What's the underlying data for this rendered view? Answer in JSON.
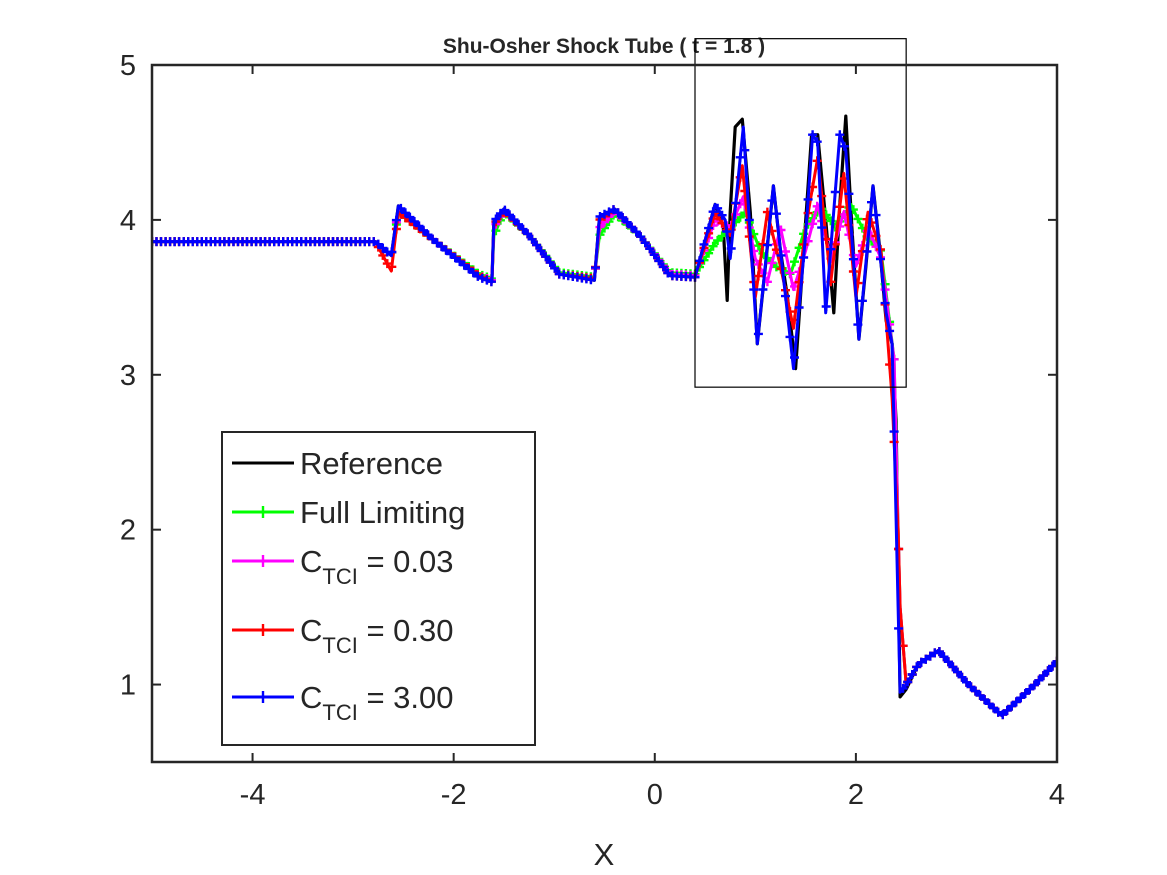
{
  "chart_data": {
    "type": "line",
    "title": "Shu-Osher Shock Tube ( t = 1.8 )",
    "xlabel": "X",
    "ylabel": "",
    "xlim": [
      -5,
      4
    ],
    "ylim": [
      0.5,
      5
    ],
    "xticks": [
      -4,
      -2,
      0,
      2,
      4
    ],
    "yticks": [
      1,
      2,
      3,
      4,
      5
    ],
    "grid": false,
    "legend_position": "bottom-left",
    "inset_box": {
      "x": [
        0.4,
        2.5
      ],
      "y": [
        2.92,
        5.17
      ]
    },
    "series": [
      {
        "name": "Reference",
        "legend_main": "Reference",
        "legend_sub": "",
        "legend_tail": "",
        "color": "#000000",
        "marker": "none",
        "x": [
          -5,
          -2.78,
          -2.62,
          -2.55,
          -2.2,
          -1.75,
          -1.62,
          -1.6,
          -1.5,
          -1.25,
          -0.95,
          -0.6,
          -0.55,
          -0.4,
          -0.15,
          0.15,
          0.4,
          0.6,
          0.68,
          0.72,
          0.75,
          0.8,
          0.87,
          0.95,
          1.02,
          1.1,
          1.18,
          1.25,
          1.32,
          1.4,
          1.48,
          1.56,
          1.62,
          1.7,
          1.78,
          1.84,
          1.9,
          1.96,
          2.03,
          2.1,
          2.17,
          2.24,
          2.3,
          2.36,
          2.4,
          2.42,
          2.44,
          2.5,
          2.62,
          2.82,
          3.12,
          3.45,
          3.78,
          4.0
        ],
        "y": [
          3.86,
          3.86,
          3.77,
          4.09,
          3.87,
          3.63,
          3.6,
          3.99,
          4.07,
          3.9,
          3.65,
          3.61,
          4.02,
          4.07,
          3.9,
          3.64,
          3.63,
          4.1,
          3.96,
          3.48,
          4.05,
          4.6,
          4.65,
          4.05,
          3.2,
          3.7,
          4.22,
          3.8,
          3.5,
          3.04,
          3.8,
          4.55,
          4.55,
          4.0,
          3.4,
          4.1,
          4.67,
          3.95,
          3.23,
          3.7,
          4.22,
          3.8,
          3.35,
          3.2,
          2.7,
          1.8,
          0.92,
          0.97,
          1.13,
          1.22,
          1.0,
          0.8,
          1.0,
          1.15
        ]
      },
      {
        "name": "Full Limiting",
        "legend_main": "Full Limiting",
        "legend_sub": "",
        "legend_tail": "",
        "color": "#00ff00",
        "marker": "+",
        "x": [
          -5,
          -2.78,
          -2.62,
          -2.55,
          -2.2,
          -1.75,
          -1.62,
          -1.6,
          -1.5,
          -1.25,
          -0.95,
          -0.6,
          -0.55,
          -0.4,
          -0.15,
          0.15,
          0.4,
          0.6,
          0.75,
          0.9,
          1.05,
          1.2,
          1.35,
          1.5,
          1.65,
          1.8,
          1.95,
          2.1,
          2.25,
          2.38,
          2.42,
          2.44,
          2.5,
          2.62,
          2.82,
          3.12,
          3.45,
          3.78,
          4.0
        ],
        "y": [
          3.86,
          3.86,
          3.77,
          4.05,
          3.87,
          3.65,
          3.62,
          3.9,
          4.05,
          3.9,
          3.66,
          3.63,
          3.9,
          4.04,
          3.9,
          3.66,
          3.65,
          3.85,
          3.95,
          4.05,
          3.8,
          3.7,
          3.65,
          3.95,
          4.08,
          3.95,
          4.1,
          3.9,
          3.8,
          3.1,
          2.0,
          1.5,
          1.0,
          1.13,
          1.22,
          1.0,
          0.8,
          1.0,
          1.15
        ]
      },
      {
        "name": "C_TCI = 0.03",
        "legend_main": "C",
        "legend_sub": "TCI",
        "legend_tail": " = 0.03",
        "color": "#ff00ff",
        "marker": "+",
        "x": [
          -5,
          -2.78,
          -2.62,
          -2.55,
          -2.2,
          -1.75,
          -1.62,
          -1.6,
          -1.5,
          -1.25,
          -0.95,
          -0.6,
          -0.55,
          -0.4,
          -0.15,
          0.15,
          0.4,
          0.6,
          0.75,
          0.88,
          1.0,
          1.12,
          1.25,
          1.38,
          1.5,
          1.62,
          1.75,
          1.88,
          2.0,
          2.12,
          2.25,
          2.38,
          2.42,
          2.44,
          2.5,
          2.62,
          2.82,
          3.12,
          3.45,
          3.78,
          4.0
        ],
        "y": [
          3.86,
          3.86,
          3.77,
          4.07,
          3.87,
          3.64,
          3.61,
          3.95,
          4.06,
          3.9,
          3.65,
          3.62,
          3.95,
          4.06,
          3.9,
          3.65,
          3.64,
          4.0,
          3.95,
          4.15,
          3.75,
          3.6,
          3.95,
          3.55,
          3.8,
          4.1,
          3.75,
          4.05,
          3.7,
          3.95,
          3.75,
          3.1,
          2.0,
          1.5,
          1.0,
          1.13,
          1.22,
          1.0,
          0.8,
          1.0,
          1.15
        ]
      },
      {
        "name": "C_TCI = 0.30",
        "legend_main": "C",
        "legend_sub": "TCI",
        "legend_tail": " = 0.30",
        "color": "#ff0000",
        "marker": "+",
        "x": [
          -5,
          -2.78,
          -2.62,
          -2.55,
          -2.2,
          -1.75,
          -1.62,
          -1.6,
          -1.5,
          -1.25,
          -0.95,
          -0.6,
          -0.55,
          -0.4,
          -0.15,
          0.15,
          0.4,
          0.6,
          0.75,
          0.87,
          1.0,
          1.12,
          1.25,
          1.38,
          1.5,
          1.62,
          1.75,
          1.88,
          2.0,
          2.12,
          2.25,
          2.36,
          2.42,
          2.44,
          2.5,
          2.62,
          2.82,
          3.12,
          3.45,
          3.78,
          4.0
        ],
        "y": [
          3.86,
          3.86,
          3.67,
          4.05,
          3.87,
          3.64,
          3.6,
          3.97,
          4.06,
          3.9,
          3.65,
          3.62,
          4.0,
          4.07,
          3.9,
          3.64,
          3.63,
          4.05,
          3.9,
          4.35,
          3.5,
          4.05,
          3.7,
          3.3,
          3.95,
          4.4,
          3.6,
          4.3,
          3.5,
          4.05,
          3.8,
          2.85,
          2.0,
          1.5,
          1.0,
          1.13,
          1.22,
          1.0,
          0.8,
          1.0,
          1.15
        ]
      },
      {
        "name": "C_TCI = 3.00",
        "legend_main": "C",
        "legend_sub": "TCI",
        "legend_tail": " = 3.00",
        "color": "#0000ff",
        "marker": "+",
        "x": [
          -5,
          -2.78,
          -2.62,
          -2.55,
          -2.2,
          -1.75,
          -1.62,
          -1.6,
          -1.5,
          -1.25,
          -0.95,
          -0.6,
          -0.55,
          -0.4,
          -0.15,
          0.15,
          0.4,
          0.6,
          0.7,
          0.75,
          0.88,
          1.02,
          1.18,
          1.25,
          1.38,
          1.5,
          1.57,
          1.62,
          1.7,
          1.84,
          1.9,
          2.03,
          2.17,
          2.3,
          2.36,
          2.42,
          2.44,
          2.5,
          2.62,
          2.82,
          3.12,
          3.45,
          3.78,
          4.0
        ],
        "y": [
          3.86,
          3.86,
          3.77,
          4.09,
          3.87,
          3.63,
          3.6,
          3.99,
          4.07,
          3.9,
          3.65,
          3.61,
          4.02,
          4.07,
          3.9,
          3.64,
          3.63,
          4.1,
          4.0,
          3.75,
          4.6,
          3.2,
          4.22,
          3.8,
          3.04,
          3.9,
          4.55,
          4.5,
          3.4,
          4.55,
          4.45,
          3.23,
          4.22,
          3.4,
          3.2,
          1.5,
          0.95,
          1.0,
          1.13,
          1.22,
          1.0,
          0.8,
          1.0,
          1.15
        ]
      }
    ]
  }
}
